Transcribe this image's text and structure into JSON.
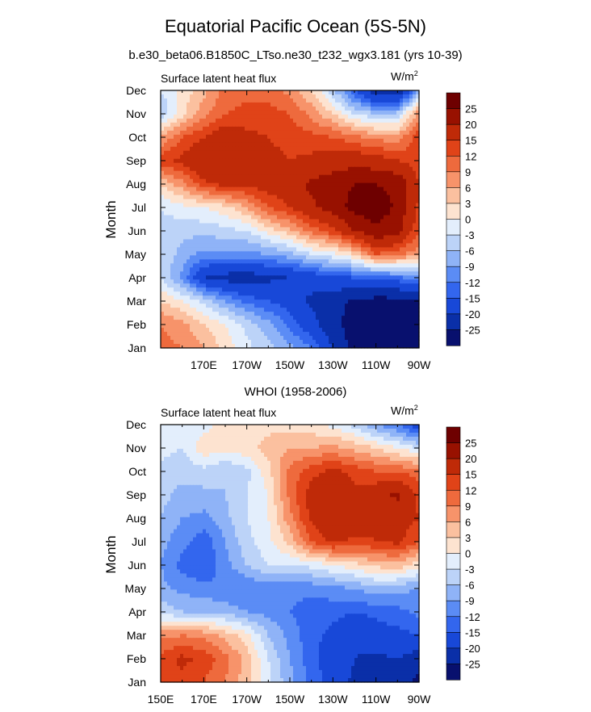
{
  "title": "Equatorial Pacific Ocean (5S-5N)",
  "subtitle": "b.e30_beta06.B1850C_LTso.ne30_t232_wgx3.181 (yrs 10-39)",
  "colors": {
    "levels_colors": [
      "#08106e",
      "#0a2fa8",
      "#1848d8",
      "#3366ee",
      "#5b8cf5",
      "#8fb3f7",
      "#bcd3f8",
      "#e3eefc",
      "#fde3d0",
      "#fbc09f",
      "#f7936a",
      "#ee6a3d",
      "#e04318",
      "#bf2a08",
      "#981100",
      "#6e0000"
    ]
  },
  "chart_data": [
    {
      "type": "heatmap",
      "panel_title": "",
      "left_title": "Surface latent heat flux",
      "units_base": "W/m",
      "units_exp": "2",
      "ylabel": "Month",
      "months": [
        "Jan",
        "Feb",
        "Mar",
        "Apr",
        "May",
        "Jun",
        "Jul",
        "Aug",
        "Sep",
        "Oct",
        "Nov",
        "Dec"
      ],
      "xlim": [
        150,
        270
      ],
      "x_tick_labels": [
        "170E",
        "170W",
        "150W",
        "130W",
        "110W",
        "90W"
      ],
      "x_tick_values": [
        170,
        190,
        210,
        230,
        250,
        270
      ],
      "show_first_xlabel": false,
      "colorbar_levels": [
        -25,
        -20,
        -15,
        -12,
        -9,
        -6,
        -3,
        0,
        3,
        6,
        9,
        12,
        15,
        20,
        25
      ],
      "colorbar_labels": [
        "25",
        "20",
        "15",
        "12",
        "9",
        "6",
        "3",
        "0",
        "-3",
        "-6",
        "-9",
        "-12",
        "-15",
        "-20",
        "-25"
      ],
      "lon": [
        150,
        160,
        170,
        180,
        190,
        200,
        210,
        220,
        230,
        240,
        250,
        260,
        270
      ],
      "values": [
        [
          10,
          9,
          6,
          2,
          -2,
          -5,
          -8,
          -12,
          -20,
          -27,
          -28,
          -28,
          -28
        ],
        [
          9,
          7,
          3,
          0,
          -4,
          -8,
          -13,
          -18,
          -24,
          -27,
          -28,
          -28,
          -28
        ],
        [
          3,
          0,
          -4,
          -9,
          -13,
          -15,
          -17,
          -21,
          -23,
          -26,
          -27,
          -27,
          -26
        ],
        [
          -3,
          -10,
          -20,
          -22,
          -23,
          -21,
          -20,
          -18,
          -16,
          -15,
          -14,
          -13,
          -10
        ],
        [
          -4,
          -7,
          -10,
          -10,
          -10,
          -9,
          -7,
          -3,
          -1,
          3,
          12,
          10,
          7
        ],
        [
          -4,
          -5,
          -5,
          -4,
          -3,
          1,
          5,
          10,
          14,
          20,
          24,
          22,
          12
        ],
        [
          -3,
          -1,
          0,
          2,
          6,
          12,
          15,
          19,
          22,
          27,
          28,
          24,
          14
        ],
        [
          3,
          8,
          14,
          16,
          16,
          17,
          18,
          21,
          23,
          25,
          25,
          24,
          15
        ],
        [
          14,
          16,
          20,
          20,
          18,
          16,
          15,
          16,
          17,
          18,
          17,
          15,
          13
        ],
        [
          6,
          12,
          15,
          18,
          16,
          15,
          14,
          13,
          12,
          10,
          8,
          7,
          14
        ],
        [
          -6,
          2,
          8,
          12,
          13,
          13,
          12,
          8,
          3,
          -3,
          -6,
          -5,
          8
        ],
        [
          -3,
          1,
          5,
          10,
          11,
          11,
          8,
          3,
          -5,
          -15,
          -24,
          -25,
          -8
        ]
      ]
    },
    {
      "type": "heatmap",
      "panel_title": "WHOI (1958-2006)",
      "left_title": "Surface latent heat flux",
      "units_base": "W/m",
      "units_exp": "2",
      "ylabel": "Month",
      "months": [
        "Jan",
        "Feb",
        "Mar",
        "Apr",
        "May",
        "Jun",
        "Jul",
        "Aug",
        "Sep",
        "Oct",
        "Nov",
        "Dec"
      ],
      "xlim": [
        150,
        270
      ],
      "x_tick_labels": [
        "150E",
        "170E",
        "170W",
        "150W",
        "130W",
        "110W",
        "90W"
      ],
      "x_tick_values": [
        150,
        170,
        190,
        210,
        230,
        250,
        270
      ],
      "show_first_xlabel": true,
      "colorbar_levels": [
        -25,
        -20,
        -15,
        -12,
        -9,
        -6,
        -3,
        0,
        3,
        6,
        9,
        12,
        15,
        20,
        25
      ],
      "colorbar_labels": [
        "25",
        "20",
        "15",
        "12",
        "9",
        "6",
        "3",
        "0",
        "-3",
        "-6",
        "-9",
        "-12",
        "-15",
        "-20",
        "-25"
      ],
      "lon": [
        150,
        160,
        170,
        180,
        190,
        200,
        210,
        220,
        230,
        240,
        250,
        260,
        270
      ],
      "values": [
        [
          12,
          14,
          12,
          9,
          4,
          -2,
          -8,
          -13,
          -17,
          -21,
          -22,
          -23,
          -26
        ],
        [
          13,
          16,
          14,
          10,
          5,
          -3,
          -9,
          -14,
          -17,
          -20,
          -21,
          -20,
          -23
        ],
        [
          8,
          9,
          8,
          5,
          1,
          -6,
          -10,
          -14,
          -16,
          -19,
          -17,
          -16,
          -15
        ],
        [
          -4,
          -6,
          -6,
          -7,
          -9,
          -10,
          -12,
          -14,
          -14,
          -15,
          -14,
          -13,
          -11
        ],
        [
          -8,
          -10,
          -11,
          -12,
          -12,
          -11,
          -11,
          -11,
          -10,
          -9,
          -7,
          -8,
          -9
        ],
        [
          -9,
          -13,
          -15,
          -10,
          -6,
          -3,
          -3,
          -2,
          0,
          2,
          4,
          5,
          1
        ],
        [
          -8,
          -11,
          -14,
          -9,
          -4,
          -1,
          4,
          12,
          16,
          14,
          15,
          16,
          12
        ],
        [
          -6,
          -9,
          -10,
          -7,
          -3,
          0,
          8,
          16,
          20,
          18,
          16,
          17,
          15
        ],
        [
          -5,
          -7,
          -7,
          -6,
          -3,
          0,
          10,
          17,
          19,
          16,
          18,
          21,
          14
        ],
        [
          -4,
          -5,
          -4,
          -6,
          -4,
          2,
          10,
          14,
          16,
          14,
          12,
          12,
          10
        ],
        [
          -2,
          -3,
          2,
          1,
          2,
          4,
          6,
          6,
          7,
          5,
          3,
          0,
          -3
        ],
        [
          -1,
          -2,
          -1,
          1,
          2,
          2,
          2,
          1,
          -1,
          -4,
          -9,
          -12,
          -18
        ]
      ]
    }
  ]
}
